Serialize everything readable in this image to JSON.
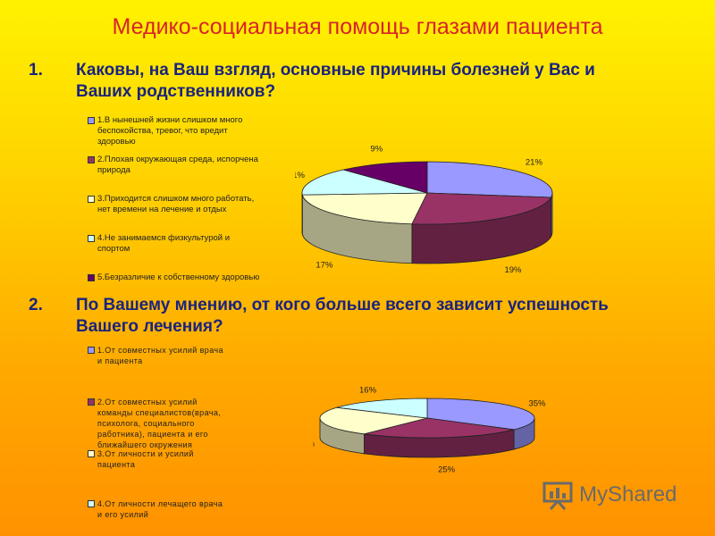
{
  "title": "Медико-социальная помощь глазами пациента",
  "questions": [
    {
      "num": "1.",
      "text": "Каковы, на Ваш взгляд, основные причины болезней у Вас и Ваших родственников?"
    },
    {
      "num": "2.",
      "text": "По Вашему мнению, от кого больше всего зависит успешность Вашего лечения?"
    }
  ],
  "chart_data": [
    {
      "type": "pie",
      "legend_placement": "left",
      "categories": [
        "1.В нынешней жизни слишком много беспокойства, тревог, что вредит здоровью",
        "2.Плохая окружающая среда, испорчена природа",
        "3.Приходится слишком много работать, нет времени на лечение и отдых",
        "4.Не занимаемся физкультурой и спортом",
        "5.Безразличие к собственному здоровью"
      ],
      "values": [
        21,
        19,
        17,
        11,
        9
      ],
      "labels": [
        "21%",
        "19%",
        "17%",
        "11%",
        "9%"
      ],
      "colors": [
        "#9999ff",
        "#993366",
        "#ffffcc",
        "#ccffff",
        "#660066"
      ]
    },
    {
      "type": "pie",
      "legend_placement": "left",
      "categories": [
        "1.От совместных усилий врача и пациента",
        "2.От совместных усилий команды специалистов(врача, психолога, социального работника), пациента и его ближайшего окружения",
        "3.От личности и усилий пациента",
        "4.От личности лечащего врача и его усилий"
      ],
      "values": [
        35,
        25,
        24,
        16
      ],
      "labels": [
        "35%",
        "25%",
        "24%",
        "16%"
      ],
      "colors": [
        "#9999ff",
        "#993366",
        "#ffffcc",
        "#ccffff"
      ]
    }
  ],
  "legend1": {
    "lines": [
      [
        "1.В нынешней жизни слишком много",
        "беспокойства, тревог, что вредит",
        "здоровью"
      ],
      [
        "2.Плохая окружающая среда, испорчена",
        "природа"
      ],
      [
        "3.Приходится слишком много работать,",
        "нет времени на лечение и отдых"
      ],
      [
        "4.Не занимаемся физкультурой и",
        "спортом"
      ],
      [
        "5.Безразличие к собственному здоровью"
      ]
    ]
  },
  "legend2": {
    "lines": [
      [
        "1.От совместных усилий врача",
        "и пациента"
      ],
      [
        "2.От совместных усилий",
        "команды специалистов(врача,",
        "психолога, социального",
        "работника), пациента и его",
        "ближайшего окружения"
      ],
      [
        "3.От личности и усилий",
        "пациента"
      ],
      [
        "4.От личности лечащего врача",
        "и его усилий"
      ]
    ]
  },
  "logo": {
    "text": "MyShared",
    "icon": "presentation-board-icon"
  }
}
